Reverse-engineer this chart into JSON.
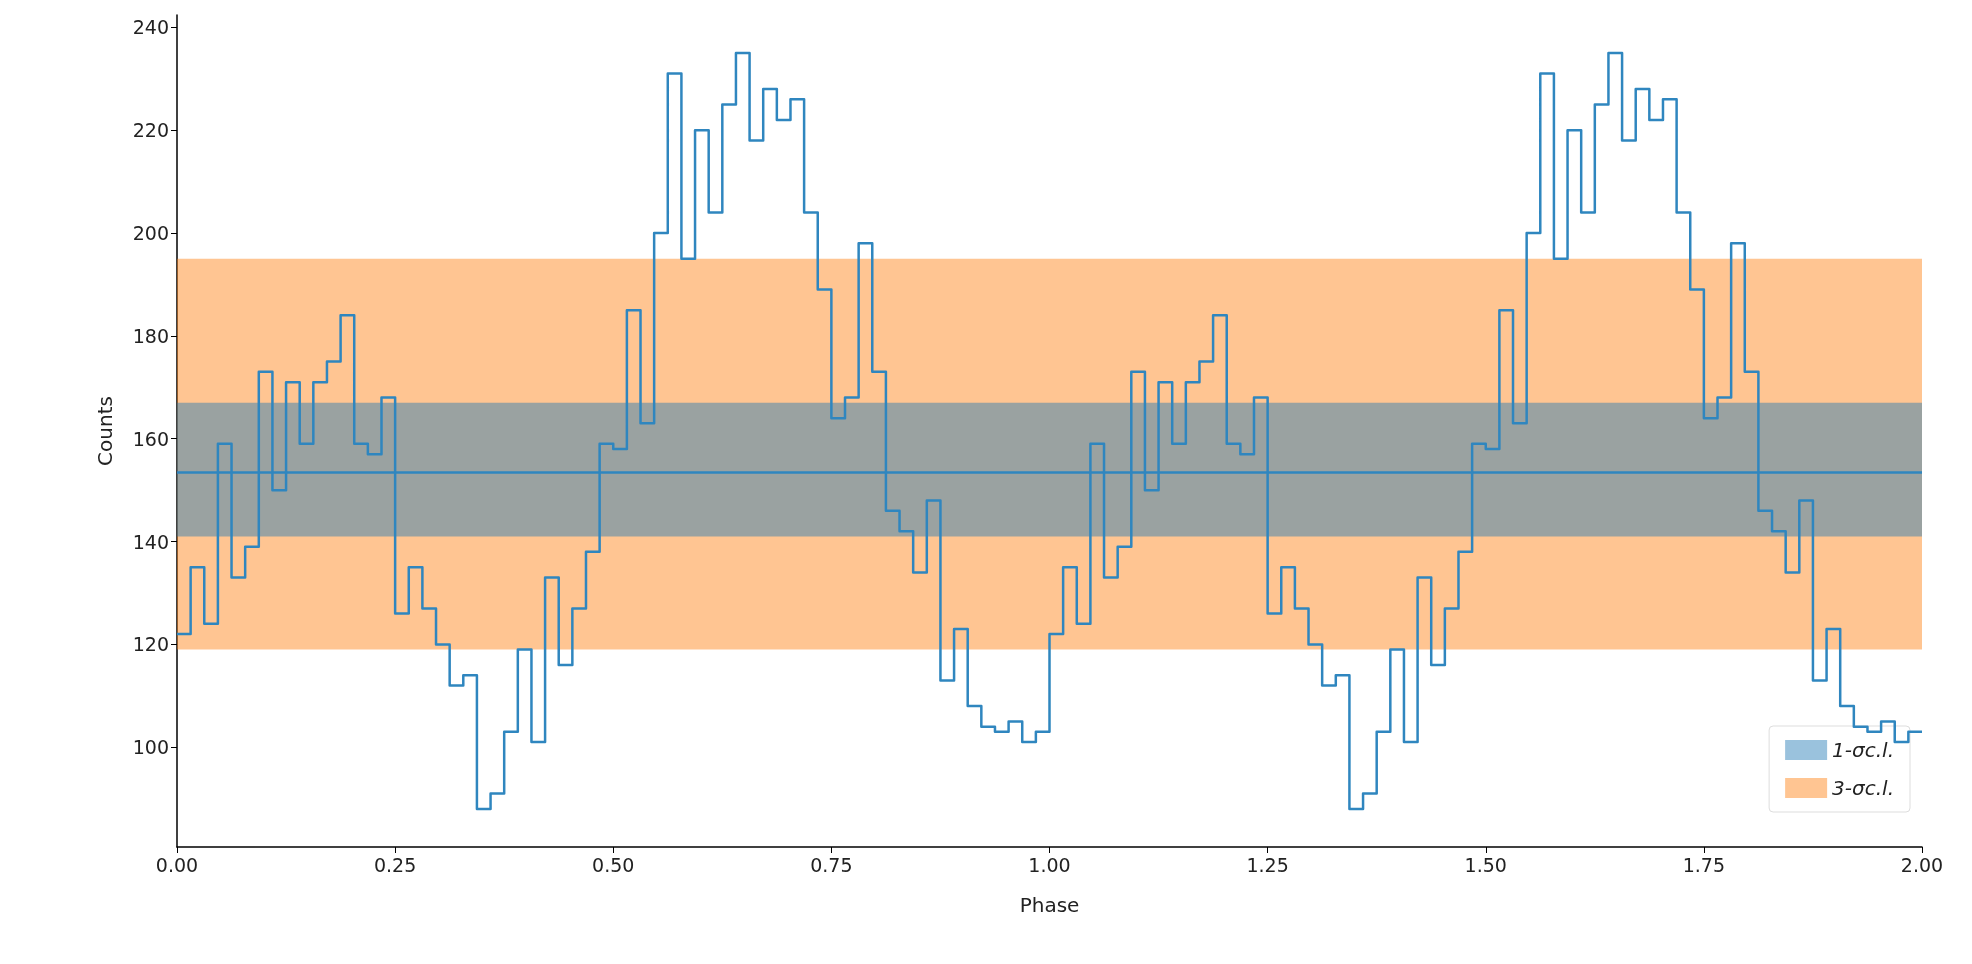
{
  "chart_data": {
    "type": "histogram",
    "xlabel": "Phase",
    "ylabel": "Counts",
    "bins": [
      0,
      0.015625,
      0.03125,
      0.046875,
      0.0625,
      0.078125,
      0.09375,
      0.109375,
      0.125,
      0.140625,
      0.15625,
      0.171875,
      0.1875,
      0.203125,
      0.21875,
      0.234375,
      0.25,
      0.265625,
      0.28125,
      0.296875,
      0.3125,
      0.328125,
      0.34375,
      0.359375,
      0.375,
      0.390625,
      0.40625,
      0.421875,
      0.4375,
      0.453125,
      0.46875,
      0.484375,
      0.5,
      0.515625,
      0.53125,
      0.546875,
      0.5625,
      0.578125,
      0.59375,
      0.609375,
      0.625,
      0.640625,
      0.65625,
      0.671875,
      0.6875,
      0.703125,
      0.71875,
      0.734375,
      0.75,
      0.765625,
      0.78125,
      0.796875,
      0.8125,
      0.828125,
      0.84375,
      0.859375,
      0.875,
      0.890625,
      0.90625,
      0.921875,
      0.9375,
      0.953125,
      0.96875,
      0.984375,
      1,
      1.015625,
      1.03125,
      1.046875,
      1.0625,
      1.078125,
      1.09375,
      1.109375,
      1.125,
      1.140625,
      1.15625,
      1.171875,
      1.1875,
      1.203125,
      1.21875,
      1.234375,
      1.25,
      1.265625,
      1.28125,
      1.296875,
      1.3125,
      1.328125,
      1.34375,
      1.359375,
      1.375,
      1.390625,
      1.40625,
      1.421875,
      1.4375,
      1.453125,
      1.46875,
      1.484375,
      1.5,
      1.515625,
      1.53125,
      1.546875,
      1.5625,
      1.578125,
      1.59375,
      1.609375,
      1.625,
      1.640625,
      1.65625,
      1.671875,
      1.6875,
      1.703125,
      1.71875,
      1.734375,
      1.75,
      1.765625,
      1.78125,
      1.796875,
      1.8125,
      1.828125,
      1.84375,
      1.859375,
      1.875,
      1.890625,
      1.90625,
      1.921875,
      1.9375,
      1.953125,
      1.96875,
      1.984375,
      2
    ],
    "values": [
      122,
      135,
      124,
      159,
      133,
      139,
      173,
      150,
      171,
      159,
      171,
      175,
      184,
      159,
      157,
      168,
      126,
      135,
      127,
      120,
      112,
      114,
      88,
      91,
      103,
      119,
      101,
      133,
      116,
      127,
      138,
      159,
      158,
      185,
      163,
      200,
      231,
      195,
      220,
      204,
      225,
      235,
      218,
      228,
      222,
      226,
      204,
      189,
      164,
      168,
      198,
      173,
      146,
      142,
      134,
      148,
      113,
      123,
      108,
      104,
      103,
      105,
      101,
      103,
      122,
      135,
      124,
      159,
      133,
      139,
      173,
      150,
      171,
      159,
      171,
      175,
      184,
      159,
      157,
      168,
      126,
      135,
      127,
      120,
      112,
      114,
      88,
      91,
      103,
      119,
      101,
      133,
      116,
      127,
      138,
      159,
      158,
      185,
      163,
      200,
      231,
      195,
      220,
      204,
      225,
      235,
      218,
      228,
      222,
      226,
      204,
      189,
      164,
      168,
      198,
      173,
      146,
      142,
      134,
      148,
      113,
      123,
      108,
      104,
      103,
      105,
      101,
      103
    ],
    "color": "#2f86bf",
    "xlim": [
      0,
      2
    ],
    "xticks": [
      {
        "value": 0,
        "label": "0.00"
      },
      {
        "value": 0.25,
        "label": "0.25"
      },
      {
        "value": 0.5,
        "label": "0.50"
      },
      {
        "value": 0.75,
        "label": "0.75"
      },
      {
        "value": 1,
        "label": "1.00"
      },
      {
        "value": 1.25,
        "label": "1.25"
      },
      {
        "value": 1.5,
        "label": "1.50"
      },
      {
        "value": 1.75,
        "label": "1.75"
      },
      {
        "value": 2,
        "label": "2.00"
      }
    ],
    "ylim": [
      80.6,
      242.4
    ],
    "yticks": [
      100,
      120,
      140,
      160,
      180,
      200,
      220,
      240
    ],
    "ref_lines": [
      {
        "axis": "y",
        "value": 153.5,
        "color": "#2f86bf"
      }
    ],
    "bands": [
      {
        "axis": "y",
        "from": 119,
        "to": 195,
        "label": "3-σc.l.",
        "color": "#ff7f0e"
      },
      {
        "axis": "y",
        "from": 141,
        "to": 167,
        "label": "1-σc.l.",
        "color": "#1f77b4"
      }
    ],
    "legend": "bottom right",
    "grid": false
  }
}
